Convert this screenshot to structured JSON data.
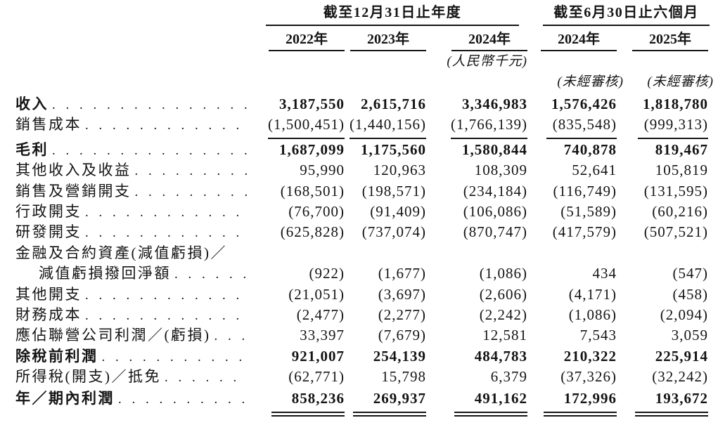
{
  "table": {
    "header": {
      "group1": {
        "title": "截至12月31日止年度",
        "years": [
          "2022年",
          "2023年",
          "2024年"
        ]
      },
      "group2": {
        "title": "截至6月30日止六個月",
        "years": [
          "2024年",
          "2025年"
        ]
      },
      "currency_note": "(人民幣千元)",
      "unaudited_notes": [
        "(未經審核)",
        "(未經審核)"
      ]
    },
    "rows": [
      {
        "label": "收入",
        "bold": true,
        "values": [
          "3,187,550",
          "2,615,716",
          "3,346,983",
          "1,576,426",
          "1,818,780"
        ]
      },
      {
        "label": "銷售成本",
        "rule_below": true,
        "values": [
          "(1,500,451)",
          "(1,440,156)",
          "(1,766,139)",
          "(835,548)",
          "(999,313)"
        ]
      },
      {
        "label": "毛利",
        "bold": true,
        "extra_gap": true,
        "values": [
          "1,687,099",
          "1,175,560",
          "1,580,844",
          "740,878",
          "819,467"
        ]
      },
      {
        "label": "其他收入及收益",
        "values": [
          "95,990",
          "120,963",
          "108,309",
          "52,641",
          "105,819"
        ]
      },
      {
        "label": "銷售及營銷開支",
        "values": [
          "(168,501)",
          "(198,571)",
          "(234,184)",
          "(116,749)",
          "(131,595)"
        ]
      },
      {
        "label": "行政開支",
        "values": [
          "(76,700)",
          "(91,409)",
          "(106,086)",
          "(51,589)",
          "(60,216)"
        ]
      },
      {
        "label": "研發開支",
        "values": [
          "(625,828)",
          "(737,074)",
          "(870,747)",
          "(417,579)",
          "(507,521)"
        ]
      },
      {
        "label": "金融及合約資產(減值虧損)／",
        "label2": "減值虧損撥回淨額",
        "values": [
          "(922)",
          "(1,677)",
          "(1,086)",
          "434",
          "(547)"
        ]
      },
      {
        "label": "其他開支",
        "values": [
          "(21,051)",
          "(3,697)",
          "(2,606)",
          "(4,171)",
          "(458)"
        ]
      },
      {
        "label": "財務成本",
        "values": [
          "(2,477)",
          "(2,277)",
          "(2,242)",
          "(1,086)",
          "(2,094)"
        ]
      },
      {
        "label": "應佔聯營公司利潤／(虧損)",
        "values": [
          "33,397",
          "(7,679)",
          "12,581",
          "7,543",
          "3,059"
        ]
      },
      {
        "label": "除稅前利潤",
        "bold": true,
        "values": [
          "921,007",
          "254,139",
          "484,783",
          "210,322",
          "225,914"
        ]
      },
      {
        "label": "所得稅(開支)／抵免",
        "values": [
          "(62,771)",
          "15,798",
          "6,379",
          "(37,326)",
          "(32,242)"
        ]
      },
      {
        "label": "年／期內利潤",
        "bold": true,
        "extra_gap_small": true,
        "double_rule_below": true,
        "values": [
          "858,236",
          "269,937",
          "491,162",
          "172,996",
          "193,672"
        ]
      }
    ]
  }
}
